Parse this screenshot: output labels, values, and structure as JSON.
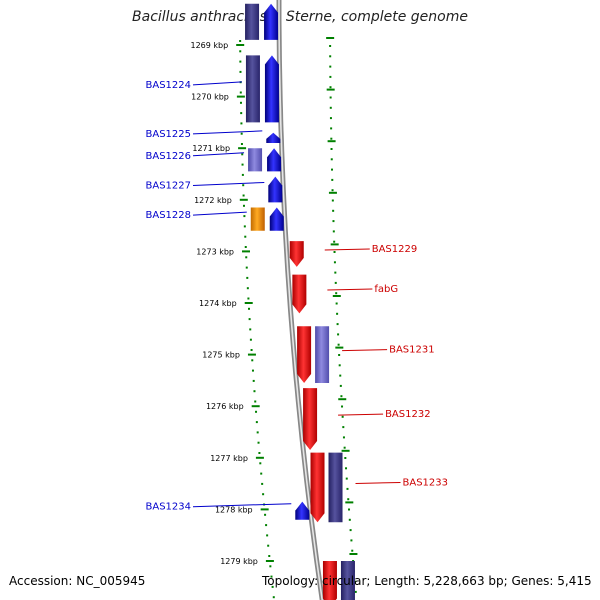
{
  "title": "Bacillus anthracis str. Sterne, complete genome",
  "footer": {
    "accession_label": "Accession: NC_005945",
    "summary_label": "Topology: circular; Length: 5,228,663 bp; Genes: 5,415"
  },
  "colors": {
    "forward_gene": "#0000ff",
    "reverse_gene": "#ff0000",
    "rrna_like": "#ff9900",
    "other_feature": "#3f3c8f",
    "light_feature": "#6f6ac9",
    "forward_label": "#0000cc",
    "reverse_label": "#cc0000",
    "tick_green": "#008000",
    "backbone": "#888888"
  },
  "scale": {
    "unit": "kbp",
    "ticks": [
      {
        "kbp": 1269,
        "label": "1269 kbp"
      },
      {
        "kbp": 1270,
        "label": "1270 kbp"
      },
      {
        "kbp": 1271,
        "label": "1271 kbp"
      },
      {
        "kbp": 1272,
        "label": "1272 kbp"
      },
      {
        "kbp": 1273,
        "label": "1273 kbp"
      },
      {
        "kbp": 1274,
        "label": "1274 kbp"
      },
      {
        "kbp": 1275,
        "label": "1275 kbp"
      },
      {
        "kbp": 1276,
        "label": "1276 kbp"
      },
      {
        "kbp": 1277,
        "label": "1277 kbp"
      },
      {
        "kbp": 1278,
        "label": "1278 kbp"
      },
      {
        "kbp": 1279,
        "label": "1279 kbp"
      }
    ]
  },
  "genes": [
    {
      "label": "",
      "strand": "forward",
      "type": "other",
      "start_kbp": 1268.2,
      "end_kbp": 1268.9
    },
    {
      "label": "",
      "strand": "forward",
      "type": "cds",
      "start_kbp": 1268.2,
      "end_kbp": 1268.9
    },
    {
      "label": "BAS1224",
      "strand": "forward",
      "type": "other",
      "start_kbp": 1269.2,
      "end_kbp": 1270.5
    },
    {
      "label": "",
      "strand": "forward",
      "type": "cds",
      "start_kbp": 1269.2,
      "end_kbp": 1270.5
    },
    {
      "label": "BAS1225",
      "strand": "forward",
      "type": "cds",
      "start_kbp": 1270.7,
      "end_kbp": 1270.9
    },
    {
      "label": "BAS1226",
      "strand": "forward",
      "type": "light",
      "start_kbp": 1271.0,
      "end_kbp": 1271.45
    },
    {
      "label": "",
      "strand": "forward",
      "type": "cds",
      "start_kbp": 1271.0,
      "end_kbp": 1271.45
    },
    {
      "label": "BAS1227",
      "strand": "forward",
      "type": "cds",
      "start_kbp": 1271.55,
      "end_kbp": 1272.05
    },
    {
      "label": "BAS1228",
      "strand": "forward",
      "type": "rrna",
      "start_kbp": 1272.15,
      "end_kbp": 1272.6
    },
    {
      "label": "",
      "strand": "forward",
      "type": "cds",
      "start_kbp": 1272.15,
      "end_kbp": 1272.6
    },
    {
      "label": "BAS1229",
      "strand": "reverse",
      "type": "cds",
      "start_kbp": 1272.8,
      "end_kbp": 1273.3
    },
    {
      "label": "fabG",
      "strand": "reverse",
      "type": "cds",
      "start_kbp": 1273.45,
      "end_kbp": 1274.2
    },
    {
      "label": "BAS1231",
      "strand": "reverse",
      "type": "cds",
      "start_kbp": 1274.45,
      "end_kbp": 1275.55
    },
    {
      "label": "",
      "strand": "reverse",
      "type": "light",
      "start_kbp": 1274.45,
      "end_kbp": 1275.55
    },
    {
      "label": "BAS1232",
      "strand": "reverse",
      "type": "cds",
      "start_kbp": 1275.65,
      "end_kbp": 1276.85
    },
    {
      "label": "BAS1233",
      "strand": "reverse",
      "type": "cds",
      "start_kbp": 1276.9,
      "end_kbp": 1278.25
    },
    {
      "label": "",
      "strand": "reverse",
      "type": "other",
      "start_kbp": 1276.9,
      "end_kbp": 1278.25
    },
    {
      "label": "BAS1234",
      "strand": "forward",
      "type": "cds",
      "start_kbp": 1277.85,
      "end_kbp": 1278.2
    },
    {
      "label": "",
      "strand": "reverse",
      "type": "cds",
      "start_kbp": 1279.0,
      "end_kbp": 1279.9
    },
    {
      "label": "",
      "strand": "reverse",
      "type": "other",
      "start_kbp": 1279.0,
      "end_kbp": 1279.9
    }
  ]
}
